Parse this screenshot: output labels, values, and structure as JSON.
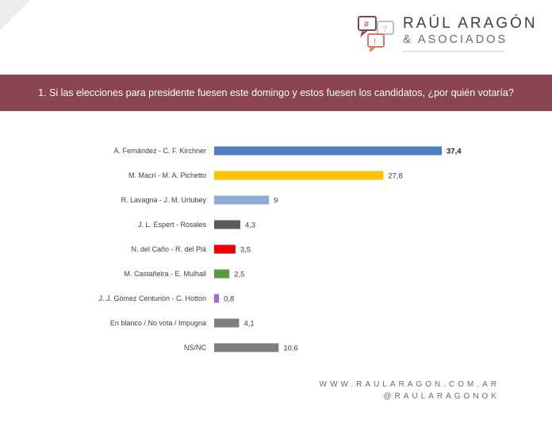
{
  "brand": {
    "name": "RAÚL ARAGÓN",
    "subtitle": "& ASOCIADOS",
    "logo_icon": "speech-bubbles-icon"
  },
  "question": "1. Si las elecciones para presidente fuesen este domingo y estos fuesen los candidatos, ¿por  quién votaría?",
  "chart_data": {
    "type": "bar",
    "orientation": "horizontal",
    "categories": [
      "A. Fernández - C. F. Kirchner",
      "M. Macri - M. A. Pichetto",
      "R. Lavagna - J. M. Urtubey",
      "J. L. Espert - Rosales",
      "N. del Caño - R. del Plá",
      "M. Castañeira - E. Mulhall",
      "J. J. Gómez Centurión - C. Hotton",
      "En blanco / No vota / Impugna",
      "NS/NC"
    ],
    "values": [
      37.4,
      27.8,
      9,
      4.3,
      3.5,
      2.5,
      0.8,
      4.1,
      10.6
    ],
    "value_labels": [
      "37,4",
      "27,8",
      "9",
      "4,3",
      "3,5",
      "2,5",
      "0,8",
      "4,1",
      "10,6"
    ],
    "colors": [
      "#4f7ec0",
      "#ffc000",
      "#8eaad6",
      "#5f5a5a",
      "#ee0000",
      "#5a9a3e",
      "#9a6ee0",
      "#7f7f7f",
      "#7f7f7f"
    ],
    "bold_value_index": 0,
    "xlim": [
      0,
      37.4
    ],
    "grid": false,
    "legend": "none"
  },
  "footer": {
    "website": "WWW.RAULARAGON.COM.AR",
    "handle": "@RAULARAGONOK"
  }
}
